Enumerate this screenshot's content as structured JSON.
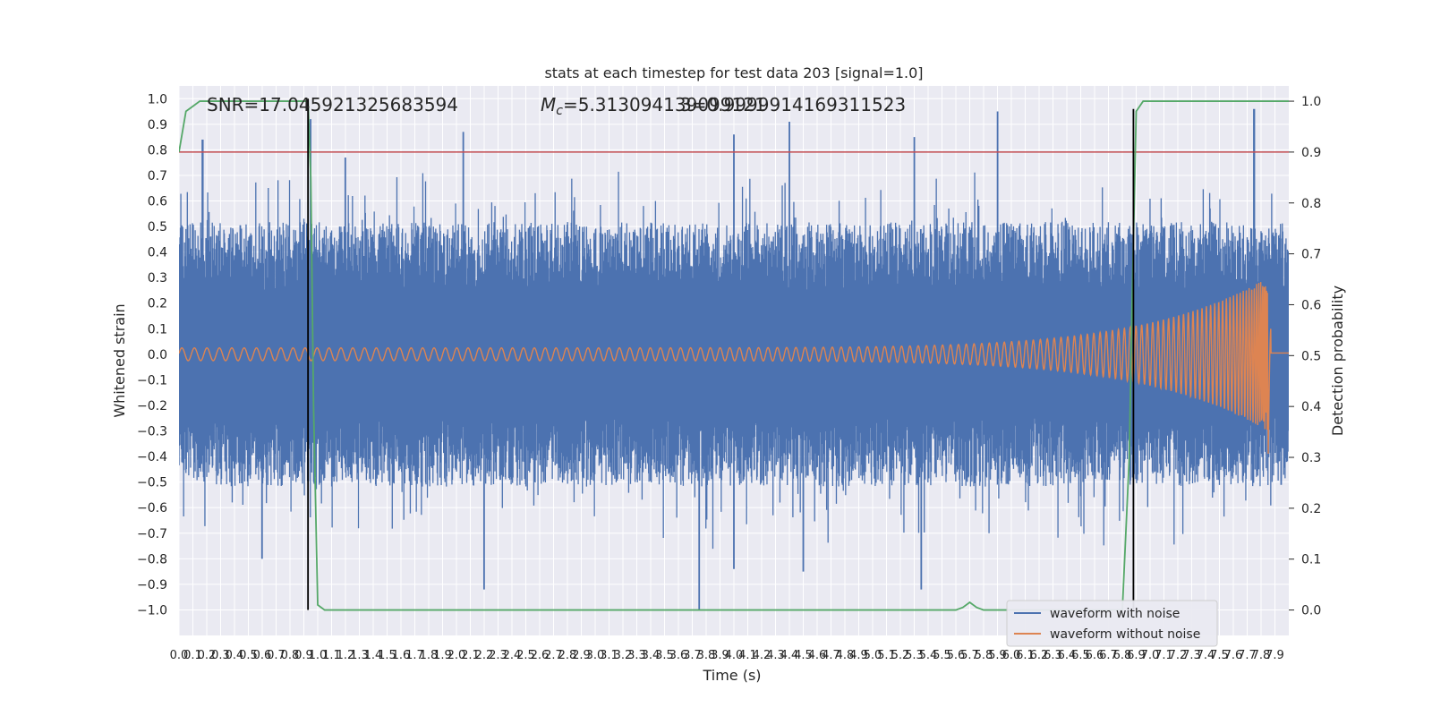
{
  "chart_data": {
    "type": "line",
    "title": "stats at each timestep for test data 203 [signal=1.0]",
    "xlabel": "Time (s)",
    "ylabel": "Whitened strain",
    "y2label": "Detection probability",
    "xlim": [
      0,
      8
    ],
    "ylim": [
      -1.1,
      1.05
    ],
    "y2lim": [
      -0.05,
      1.03
    ],
    "x_ticks": [
      0.0,
      0.1,
      0.2,
      0.3,
      0.4,
      0.5,
      0.6,
      0.7,
      0.8,
      0.9,
      1.0,
      1.1,
      1.2,
      1.3,
      1.4,
      1.5,
      1.6,
      1.7,
      1.8,
      1.9,
      2.0,
      2.1,
      2.2,
      2.3,
      2.4,
      2.5,
      2.6,
      2.7,
      2.8,
      2.9,
      3.0,
      3.1,
      3.2,
      3.3,
      3.4,
      3.5,
      3.6,
      3.7,
      3.8,
      3.9,
      4.0,
      4.1,
      4.2,
      4.3,
      4.4,
      4.5,
      4.6,
      4.7,
      4.8,
      4.9,
      5.0,
      5.1,
      5.2,
      5.3,
      5.4,
      5.5,
      5.6,
      5.7,
      5.8,
      5.9,
      6.0,
      6.1,
      6.2,
      6.3,
      6.4,
      6.5,
      6.6,
      6.7,
      6.8,
      6.9,
      7.0,
      7.1,
      7.2,
      7.3,
      7.4,
      7.5,
      7.6,
      7.7,
      7.8,
      7.9
    ],
    "y_ticks": [
      -1.0,
      -0.9,
      -0.8,
      -0.7,
      -0.6,
      -0.5,
      -0.4,
      -0.3,
      -0.2,
      -0.1,
      0.0,
      0.1,
      0.2,
      0.3,
      0.4,
      0.5,
      0.6,
      0.7,
      0.8,
      0.9,
      1.0
    ],
    "y2_ticks": [
      0.0,
      0.1,
      0.2,
      0.3,
      0.4,
      0.5,
      0.6,
      0.7,
      0.8,
      0.9,
      1.0
    ],
    "grid": true,
    "legend_position": "lower right",
    "legend": [
      "waveform with noise",
      "waveform without noise"
    ],
    "annotations": {
      "snr": "SNR=17.045921325683594",
      "mc_symbol": "M",
      "mc_sub": "c",
      "mc_value": "=5.313094139099121",
      "overlap": "3=0.9999914169311523"
    },
    "noisy_envelope": {
      "description_free_params": true,
      "base_amplitude": 0.45,
      "peaks": [
        {
          "x": 0.17,
          "y": 0.84
        },
        {
          "x": 0.95,
          "y": 0.92
        },
        {
          "x": 1.2,
          "y": 0.77
        },
        {
          "x": 2.05,
          "y": 0.87
        },
        {
          "x": 4.0,
          "y": 0.86
        },
        {
          "x": 4.4,
          "y": 0.91
        },
        {
          "x": 5.3,
          "y": 0.85
        },
        {
          "x": 5.9,
          "y": 0.95
        },
        {
          "x": 7.75,
          "y": 0.96
        },
        {
          "x": 3.75,
          "y": -1.0
        },
        {
          "x": 2.2,
          "y": -0.92
        },
        {
          "x": 5.35,
          "y": -0.92
        },
        {
          "x": 4.0,
          "y": -0.84
        },
        {
          "x": 4.5,
          "y": -0.85
        },
        {
          "x": 0.6,
          "y": -0.8
        }
      ]
    },
    "clean_waveform": {
      "amplitude_start": 0.025,
      "amplitude_peak": 0.3,
      "x_start": 0.0,
      "x_merger": 7.85,
      "x_end": 8.0,
      "ringdown_min": -0.45
    },
    "threshold": {
      "y2": 0.9,
      "color": "#c44e52"
    },
    "detection_probability": {
      "x": [
        0.0,
        0.05,
        0.1,
        0.15,
        0.2,
        0.3,
        0.5,
        0.7,
        0.9,
        0.93,
        0.95,
        0.97,
        1.0,
        1.05,
        1.1,
        2.0,
        3.0,
        4.0,
        5.0,
        5.6,
        5.65,
        5.7,
        5.75,
        5.8,
        5.85,
        6.0,
        6.5,
        6.8,
        6.85,
        6.87,
        6.9,
        6.95,
        7.0,
        7.5,
        8.0
      ],
      "y": [
        0.9,
        0.98,
        0.99,
        1.0,
        1.0,
        1.0,
        1.0,
        1.0,
        1.0,
        1.0,
        0.85,
        0.4,
        0.01,
        0.0,
        0.0,
        0.0,
        0.0,
        0.0,
        0.0,
        0.0,
        0.005,
        0.015,
        0.005,
        0.0,
        0.0,
        0.0,
        0.0,
        0.0,
        0.3,
        0.6,
        0.98,
        1.0,
        1.0,
        1.0,
        1.0
      ]
    },
    "event_markers": [
      {
        "x": 0.93,
        "y_from": -1.0,
        "y_to": 1.0
      },
      {
        "x": 6.88,
        "y_from": -1.0,
        "y_to": 0.96
      }
    ],
    "colors": {
      "noisy": "#4c72b0",
      "clean": "#dd8452",
      "probability": "#55a868",
      "threshold": "#c44e52",
      "marker": "#000000",
      "background": "#eaeaf2",
      "grid": "#ffffff"
    }
  }
}
